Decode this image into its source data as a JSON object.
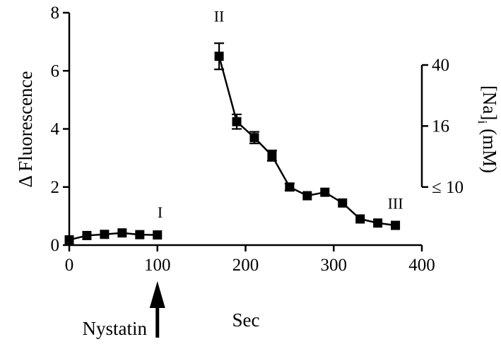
{
  "chart_data": {
    "type": "line",
    "x": [
      0,
      20,
      40,
      60,
      80,
      100,
      170,
      190,
      210,
      230,
      250,
      270,
      290,
      310,
      330,
      350,
      370
    ],
    "series": [
      {
        "values": [
          0.18,
          0.33,
          0.37,
          0.42,
          0.36,
          0.35,
          6.5,
          4.25,
          3.7,
          3.08,
          2.0,
          1.7,
          1.82,
          1.45,
          0.9,
          0.76,
          0.68
        ],
        "error": [
          0.05,
          0.05,
          0.05,
          0.05,
          0.05,
          0.05,
          0.45,
          0.25,
          0.2,
          0.18,
          0.12,
          0.05,
          0.05,
          0.05,
          0.05,
          0.05,
          0.05
        ],
        "segments": [
          [
            0,
            5
          ],
          [
            6,
            16
          ]
        ]
      }
    ],
    "xlim": [
      0,
      400
    ],
    "ylim": [
      0,
      8
    ],
    "xticks": [
      0,
      100,
      200,
      300,
      400
    ],
    "yticks": [
      0,
      2,
      4,
      6,
      8
    ],
    "xlabel": "Sec",
    "ylabel": "Δ Fluorescence",
    "y2label": "[Na]i (mM)",
    "y2label_main": "[Na]",
    "y2label_sub": "i",
    "y2label_tail": " (mM)",
    "y2ticks": [
      {
        "label": "40",
        "at_y": 6.2
      },
      {
        "label": "16",
        "at_y": 4.1
      },
      {
        "label": "≤ 10",
        "at_y": 2.0
      }
    ],
    "annotations": [
      {
        "text": "I",
        "x": 103,
        "y": 0.95
      },
      {
        "text": "II",
        "x": 170,
        "y": 7.7
      },
      {
        "text": "III",
        "x": 370,
        "y": 1.25
      }
    ],
    "arrow": {
      "label": "Nystatin",
      "x": 100
    }
  }
}
